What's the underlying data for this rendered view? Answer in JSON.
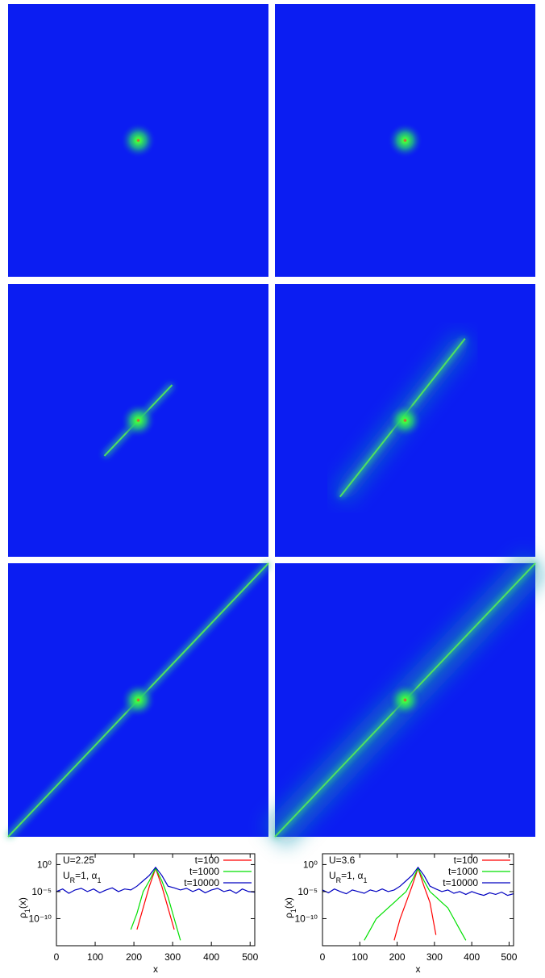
{
  "chart_data": [
    {
      "type": "line",
      "annotation": [
        "U=2.25",
        [
          "U",
          "R",
          "=1, α",
          "1"
        ]
      ],
      "y_label": [
        "ρ",
        "1",
        "(x)"
      ],
      "x_label": "x",
      "log_y": true,
      "xlim": [
        0,
        512
      ],
      "ylim": [
        1e-15,
        100
      ],
      "xticks": [
        0,
        100,
        200,
        300,
        400,
        500
      ],
      "yticks": [
        {
          "value": 1,
          "label": "10⁰"
        },
        {
          "value": 1e-05,
          "label": "10⁻⁵"
        },
        {
          "value": 1e-10,
          "label": "10⁻¹⁰"
        }
      ],
      "x": [
        0,
        16,
        32,
        48,
        64,
        80,
        96,
        112,
        128,
        144,
        160,
        176,
        192,
        208,
        224,
        240,
        256,
        272,
        288,
        304,
        320,
        336,
        352,
        368,
        384,
        400,
        416,
        432,
        448,
        464,
        480,
        496,
        512
      ],
      "series": [
        {
          "name": "t=100",
          "color": "#ff0000",
          "values": [
            null,
            null,
            null,
            null,
            null,
            null,
            null,
            null,
            null,
            null,
            null,
            null,
            null,
            1e-12,
            1e-08,
            0.0001,
            0.2,
            0.0001,
            1e-08,
            1e-12,
            null,
            null,
            null,
            null,
            null,
            null,
            null,
            null,
            null,
            null,
            null,
            null,
            null
          ]
        },
        {
          "name": "t=1000",
          "color": "#00e000",
          "values": [
            null,
            null,
            null,
            null,
            null,
            null,
            null,
            null,
            null,
            null,
            null,
            null,
            1e-12,
            1e-09,
            1e-05,
            0.001,
            0.2,
            0.001,
            1e-06,
            1e-10,
            1e-14,
            null,
            null,
            null,
            null,
            null,
            null,
            null,
            null,
            null,
            null,
            null,
            null
          ]
        },
        {
          "name": "t=10000",
          "color": "#0000c0",
          "values": [
            1e-05,
            3e-05,
            5e-06,
            2e-05,
            4e-05,
            1e-05,
            3e-05,
            6e-06,
            2e-05,
            5e-05,
            1e-05,
            3e-05,
            2e-05,
            0.0001,
            0.001,
            0.01,
            0.3,
            0.01,
            0.0001,
            5e-05,
            2e-05,
            4e-05,
            1e-05,
            3e-05,
            6e-06,
            2e-05,
            4e-05,
            1e-05,
            2e-05,
            5e-06,
            3e-05,
            1e-05,
            8e-06
          ]
        }
      ]
    },
    {
      "type": "line",
      "annotation": [
        "U=3.6",
        [
          "U",
          "R",
          "=1, α",
          "1"
        ]
      ],
      "y_label": [
        "ρ",
        "1",
        "(x)"
      ],
      "x_label": "x",
      "log_y": true,
      "xlim": [
        0,
        512
      ],
      "ylim": [
        1e-15,
        100
      ],
      "xticks": [
        0,
        100,
        200,
        300,
        400,
        500
      ],
      "yticks": [
        {
          "value": 1,
          "label": "10⁰"
        },
        {
          "value": 1e-05,
          "label": "10⁻⁵"
        },
        {
          "value": 1e-10,
          "label": "10⁻¹⁰"
        }
      ],
      "x": [
        0,
        16,
        32,
        48,
        64,
        80,
        96,
        112,
        128,
        144,
        160,
        176,
        192,
        208,
        224,
        240,
        256,
        272,
        288,
        304,
        320,
        336,
        352,
        368,
        384,
        400,
        416,
        432,
        448,
        464,
        480,
        496,
        512
      ],
      "series": [
        {
          "name": "t=100",
          "color": "#ff0000",
          "values": [
            null,
            null,
            null,
            null,
            null,
            null,
            null,
            null,
            null,
            null,
            null,
            null,
            1e-14,
            1e-10,
            1e-07,
            0.0001,
            0.2,
            0.0001,
            1e-07,
            1e-13,
            null,
            null,
            null,
            null,
            null,
            null,
            null,
            null,
            null,
            null,
            null,
            null,
            null
          ]
        },
        {
          "name": "t=1000",
          "color": "#00e000",
          "values": [
            null,
            null,
            null,
            null,
            null,
            null,
            null,
            1e-14,
            1e-12,
            1e-10,
            1e-09,
            1e-08,
            1e-07,
            1e-06,
            1e-05,
            0.001,
            0.2,
            0.001,
            1e-05,
            1e-06,
            1e-07,
            1e-08,
            1e-10,
            1e-12,
            1e-14,
            null,
            null,
            null,
            null,
            null,
            null,
            null,
            null
          ]
        },
        {
          "name": "t=10000",
          "color": "#0000c0",
          "values": [
            2e-05,
            6e-06,
            3e-05,
            1e-05,
            4e-06,
            2e-05,
            1e-05,
            5e-06,
            2e-05,
            1e-05,
            3e-05,
            1e-05,
            2e-05,
            0.0001,
            0.001,
            0.01,
            0.3,
            0.01,
            0.0001,
            3e-05,
            1e-05,
            2e-05,
            5e-06,
            1e-05,
            3e-06,
            1e-05,
            4e-06,
            2e-06,
            6e-06,
            3e-06,
            8e-06,
            2e-06,
            4e-06
          ]
        }
      ]
    }
  ]
}
